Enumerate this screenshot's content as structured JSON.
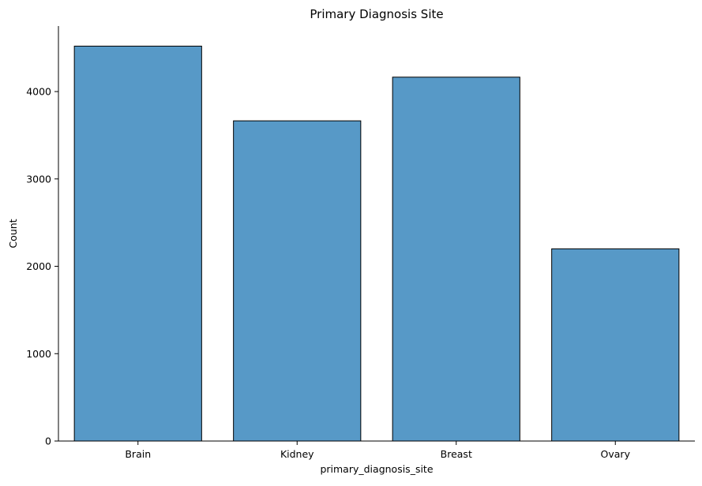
{
  "chart_data": {
    "type": "bar",
    "title": "Primary Diagnosis Site",
    "xlabel": "primary_diagnosis_site",
    "ylabel": "Count",
    "categories": [
      "Brain",
      "Kidney",
      "Breast",
      "Ovary"
    ],
    "values": [
      4520,
      3665,
      4165,
      2200
    ],
    "ylim": [
      0,
      4750
    ],
    "yticks": [
      0,
      1000,
      2000,
      3000,
      4000
    ],
    "bar_color": "#5799c7",
    "bar_edge_color": "#000000",
    "grid": false,
    "legend": "none"
  }
}
